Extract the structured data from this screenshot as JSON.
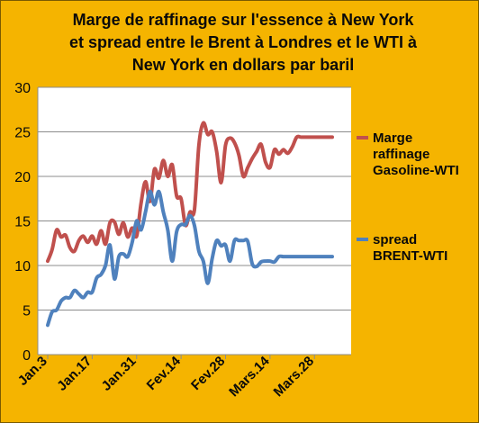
{
  "chart_data": {
    "type": "line",
    "title": "Marge de raffinage sur l'essence à New York\net spread entre le Brent à Londres et le WTI  à\nNew York en dollars par baril",
    "xlabel": "",
    "ylabel": "",
    "ylim": [
      0,
      30
    ],
    "yticks": [
      "0",
      "5",
      "10",
      "15",
      "20",
      "25",
      "30"
    ],
    "grid": true,
    "legend_position": "right",
    "x": [
      "Jan.3",
      "Jan.4",
      "Jan.5",
      "Jan.6",
      "Jan.7",
      "Jan.10",
      "Jan.11",
      "Jan.12",
      "Jan.13",
      "Jan.14",
      "Jan.17",
      "Jan.18",
      "Jan.19",
      "Jan.20",
      "Jan.21",
      "Jan.24",
      "Jan.25",
      "Jan.26",
      "Jan.27",
      "Jan.28",
      "Jan.31",
      "Fev.1",
      "Fev.2",
      "Fev.3",
      "Fev.4",
      "Fev.7",
      "Fev.8",
      "Fev.9",
      "Fev.10",
      "Fev.11",
      "Fev.14",
      "Fev.15",
      "Fev.16",
      "Fev.17",
      "Fev.18",
      "Fev.21",
      "Fev.22",
      "Fev.23",
      "Fev.24",
      "Fev.25",
      "Fev.28",
      "Mars.1",
      "Mars.2",
      "Mars.3",
      "Mars.4",
      "Mars.7",
      "Mars.8",
      "Mars.9",
      "Mars.10",
      "Mars.11",
      "Mars.14",
      "Mars.15",
      "Mars.16",
      "Mars.17",
      "Mars.18",
      "Mars.21",
      "Mars.22",
      "Mars.23",
      "Mars.24",
      "Mars.25",
      "Mars.28",
      "Mars.29",
      "Mars.30",
      "Mars.31",
      "Avr.1"
    ],
    "x_tick_labels": [
      "Jan.3",
      "Jan.17",
      "Jan.31",
      "Fev.14",
      "Fev.28",
      "Mars.14",
      "Mars.28"
    ],
    "series": [
      {
        "name": "Marge raffinage Gasoline-WTI",
        "color": "#c0504d",
        "values": [
          10.5,
          11.8,
          14.0,
          13.2,
          13.4,
          12.0,
          11.6,
          12.8,
          13.3,
          12.6,
          13.3,
          12.4,
          13.9,
          12.4,
          14.8,
          14.9,
          13.5,
          14.8,
          13.2,
          14.2,
          13.3,
          17.0,
          19.4,
          17.2,
          20.8,
          19.8,
          21.8,
          20.0,
          21.3,
          17.8,
          17.5,
          14.5,
          16.0,
          16.2,
          23.5,
          26.0,
          24.7,
          25.0,
          22.8,
          19.3,
          23.5,
          24.3,
          23.8,
          22.4,
          20.0,
          21.0,
          22.0,
          22.8,
          23.6,
          21.6,
          21.0,
          23.0,
          22.5,
          23.0,
          22.6,
          23.3,
          24.4,
          24.4,
          24.4,
          24.4,
          24.4,
          24.4,
          24.4,
          24.4,
          24.4
        ]
      },
      {
        "name": "spread BRENT-WTI",
        "color": "#4f81bd",
        "values": [
          3.3,
          4.8,
          5.0,
          6.0,
          6.4,
          6.4,
          7.2,
          6.8,
          6.4,
          7.0,
          7.0,
          8.6,
          9.0,
          10.0,
          12.3,
          8.5,
          11.0,
          11.3,
          11.0,
          12.6,
          15.0,
          14.0,
          16.0,
          18.3,
          16.8,
          18.3,
          16.0,
          14.0,
          10.5,
          13.8,
          14.6,
          14.6,
          15.6,
          14.5,
          11.6,
          10.5,
          8.0,
          10.8,
          12.8,
          12.2,
          12.3,
          10.5,
          12.8,
          12.8,
          12.8,
          12.7,
          10.2,
          9.9,
          10.4,
          10.5,
          10.5,
          10.4,
          11.0,
          11.0,
          11.0,
          11.0,
          11.0,
          11.0,
          11.0,
          11.0,
          11.0,
          11.0,
          11.0,
          11.0,
          11.0
        ]
      }
    ]
  }
}
